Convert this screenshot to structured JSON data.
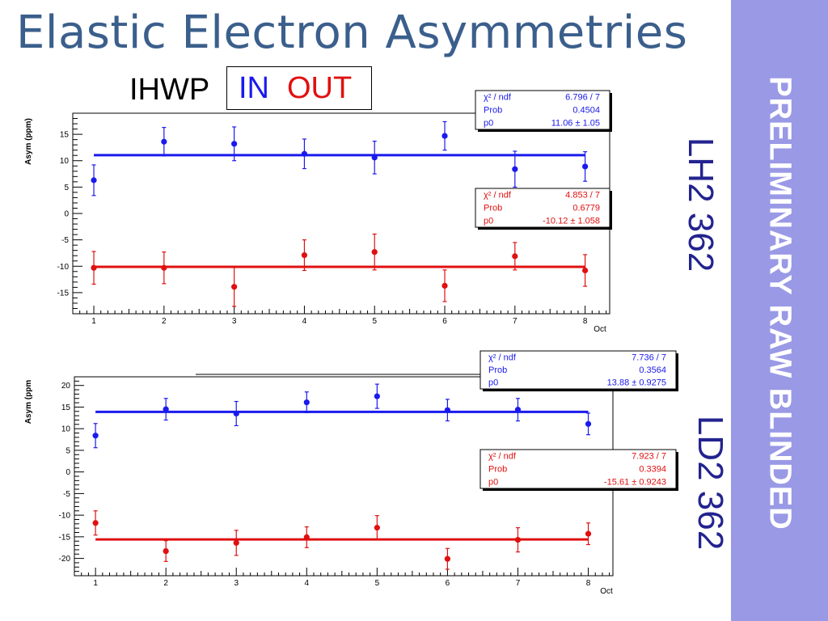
{
  "title": "Elastic Electron Asymmetries",
  "ihwp": {
    "label": "IHWP",
    "in_label": "IN",
    "out_label": "OUT"
  },
  "side_banner": "PRELIMINARY RAW BLINDED",
  "colors": {
    "in": "#1a1aee",
    "out": "#e01010",
    "title": "#3b5f8c",
    "banner": "#9999e6",
    "target_label": "#23238f"
  },
  "chart_data": [
    {
      "type": "scatter",
      "target_label": "LH2 362",
      "xlabel": "Oct",
      "ylabel": "Asym (ppm)",
      "xlim": [
        0.7,
        8.35
      ],
      "ylim": [
        -19,
        19
      ],
      "xticks": [
        1,
        2,
        3,
        4,
        5,
        6,
        7,
        8
      ],
      "yticks": [
        15,
        10,
        5,
        0,
        -5,
        -10,
        -15
      ],
      "series": [
        {
          "name": "IN",
          "color": "#1a1aee",
          "fit": 11.06,
          "x": [
            1,
            2,
            3,
            4,
            5,
            6,
            7,
            8
          ],
          "y": [
            6.3,
            13.6,
            13.2,
            11.3,
            10.6,
            14.7,
            8.4,
            8.9
          ],
          "err": [
            2.9,
            2.7,
            3.2,
            2.8,
            3.1,
            2.7,
            3.4,
            2.8
          ],
          "stats": [
            {
              "k": "χ² / ndf",
              "v": "6.796 / 7"
            },
            {
              "k": "Prob",
              "v": "0.4504"
            },
            {
              "k": "p0",
              "v": "11.06 ±  1.05"
            }
          ]
        },
        {
          "name": "OUT",
          "color": "#e01010",
          "fit": -10.12,
          "x": [
            1,
            2,
            3,
            4,
            5,
            6,
            7,
            8
          ],
          "y": [
            -10.3,
            -10.3,
            -13.9,
            -7.9,
            -7.3,
            -13.7,
            -8.1,
            -10.8
          ],
          "err": [
            3.1,
            3.0,
            3.7,
            2.9,
            3.4,
            3.0,
            2.6,
            3.0
          ],
          "stats": [
            {
              "k": "χ² / ndf",
              "v": "4.853 / 7"
            },
            {
              "k": "Prob",
              "v": "0.6779"
            },
            {
              "k": "p0",
              "v": "-10.12 ± 1.058"
            }
          ]
        }
      ]
    },
    {
      "type": "scatter",
      "target_label": "LD2 362",
      "xlabel": "Oct",
      "ylabel": "Asym (ppm",
      "xlim": [
        0.7,
        8.35
      ],
      "ylim": [
        -24,
        22
      ],
      "xticks": [
        1,
        2,
        3,
        4,
        5,
        6,
        7,
        8
      ],
      "yticks": [
        20,
        15,
        10,
        5,
        0,
        -5,
        -10,
        -15,
        -20
      ],
      "series": [
        {
          "name": "IN",
          "color": "#1a1aee",
          "fit": 13.88,
          "x": [
            1,
            2,
            3,
            4,
            5,
            6,
            7,
            8
          ],
          "y": [
            8.4,
            14.5,
            13.5,
            16.1,
            17.5,
            14.3,
            14.4,
            11.1
          ],
          "err": [
            2.8,
            2.5,
            2.8,
            2.4,
            2.8,
            2.5,
            2.6,
            2.5
          ],
          "stats": [
            {
              "k": "χ² / ndf",
              "v": "7.736 / 7"
            },
            {
              "k": "Prob",
              "v": "0.3564"
            },
            {
              "k": "p0",
              "v": "13.88 ± 0.9275"
            }
          ]
        },
        {
          "name": "OUT",
          "color": "#e01010",
          "fit": -15.61,
          "x": [
            1,
            2,
            3,
            4,
            5,
            6,
            7,
            8
          ],
          "y": [
            -11.8,
            -18.3,
            -16.4,
            -15.1,
            -12.9,
            -20.1,
            -15.7,
            -14.3
          ],
          "err": [
            2.8,
            2.4,
            2.9,
            2.4,
            2.8,
            2.4,
            2.8,
            2.5
          ],
          "stats": [
            {
              "k": "χ² / ndf",
              "v": "7.923 / 7"
            },
            {
              "k": "Prob",
              "v": "0.3394"
            },
            {
              "k": "p0",
              "v": "-15.61 ± 0.9243"
            }
          ]
        }
      ]
    }
  ]
}
